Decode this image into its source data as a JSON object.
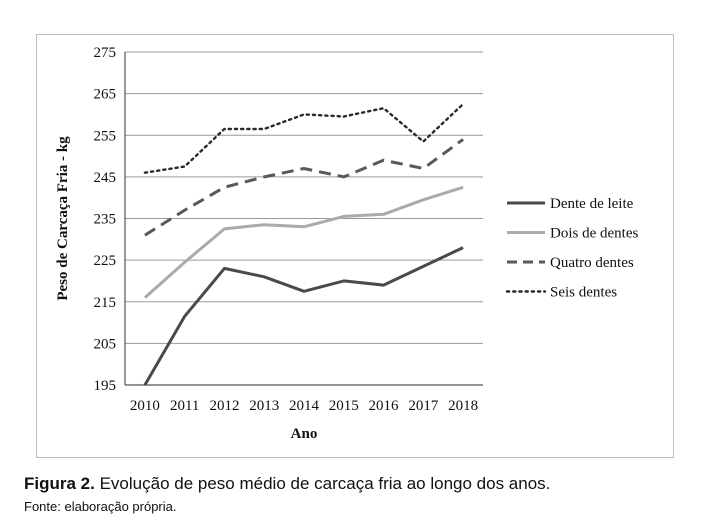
{
  "figure": {
    "label": "Figura 2.",
    "caption": "Evolução de peso médio de carcaça fria ao longo dos anos.",
    "source": "Fonte: elaboração própria."
  },
  "chart_data": {
    "type": "line",
    "xlabel": "Ano",
    "ylabel": "Peso de Carcaça Fria - kg",
    "x": [
      "2010",
      "2011",
      "2012",
      "2013",
      "2014",
      "2015",
      "2016",
      "2017",
      "2018"
    ],
    "ylim": [
      195,
      275
    ],
    "yticks": [
      195,
      205,
      215,
      225,
      235,
      245,
      255,
      265,
      275
    ],
    "grid": true,
    "legend_position": "right",
    "series": [
      {
        "name": "Dente de leite",
        "style": "solid",
        "color": "#4a4a4a",
        "values": [
          195,
          211.5,
          223,
          221,
          217.5,
          220,
          219,
          223.5,
          228
        ]
      },
      {
        "name": "Dois de dentes",
        "style": "solid",
        "color": "#ababab",
        "values": [
          216,
          224.5,
          232.5,
          233.5,
          233,
          235.5,
          236,
          239.5,
          242.5
        ]
      },
      {
        "name": "Quatro dentes",
        "style": "dashed",
        "color": "#5a5a5a",
        "values": [
          231,
          237,
          242.5,
          245,
          247,
          245,
          249,
          247,
          254
        ]
      },
      {
        "name": "Seis dentes",
        "style": "dotted",
        "color": "#2a2a2a",
        "values": [
          246,
          247.5,
          256.5,
          256.5,
          260,
          259.5,
          261.5,
          253.5,
          262.5
        ]
      }
    ]
  }
}
